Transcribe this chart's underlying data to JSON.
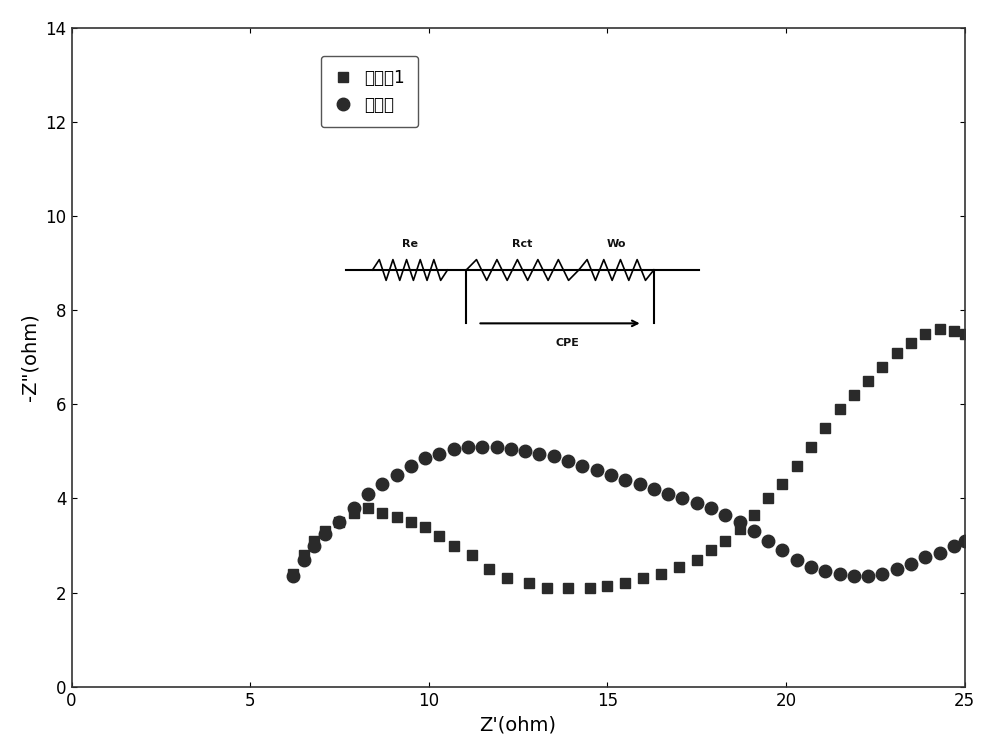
{
  "title": "",
  "xlabel": "Z'(ohm)",
  "ylabel": "-Z\"(ohm)",
  "xlim": [
    0,
    25
  ],
  "ylim": [
    0,
    14
  ],
  "xticks": [
    0,
    5,
    10,
    15,
    20,
    25
  ],
  "yticks": [
    0,
    2,
    4,
    6,
    8,
    10,
    12,
    14
  ],
  "legend_labels": [
    "实施例1",
    "对比例"
  ],
  "series1_x": [
    6.2,
    6.5,
    6.8,
    7.1,
    7.5,
    7.9,
    8.3,
    8.7,
    9.1,
    9.5,
    9.9,
    10.3,
    10.7,
    11.2,
    11.7,
    12.2,
    12.8,
    13.3,
    13.9,
    14.5,
    15.0,
    15.5,
    16.0,
    16.5,
    17.0,
    17.5,
    17.9,
    18.3,
    18.7,
    19.1,
    19.5,
    19.9,
    20.3,
    20.7,
    21.1,
    21.5,
    21.9,
    22.3,
    22.7,
    23.1,
    23.5,
    23.9,
    24.3,
    24.7,
    25.0
  ],
  "series1_y": [
    2.4,
    2.8,
    3.1,
    3.3,
    3.5,
    3.7,
    3.8,
    3.7,
    3.6,
    3.5,
    3.4,
    3.2,
    3.0,
    2.8,
    2.5,
    2.3,
    2.2,
    2.1,
    2.1,
    2.1,
    2.15,
    2.2,
    2.3,
    2.4,
    2.55,
    2.7,
    2.9,
    3.1,
    3.35,
    3.65,
    4.0,
    4.3,
    4.7,
    5.1,
    5.5,
    5.9,
    6.2,
    6.5,
    6.8,
    7.1,
    7.3,
    7.5,
    7.6,
    7.55,
    7.5
  ],
  "series2_x": [
    6.2,
    6.5,
    6.8,
    7.1,
    7.5,
    7.9,
    8.3,
    8.7,
    9.1,
    9.5,
    9.9,
    10.3,
    10.7,
    11.1,
    11.5,
    11.9,
    12.3,
    12.7,
    13.1,
    13.5,
    13.9,
    14.3,
    14.7,
    15.1,
    15.5,
    15.9,
    16.3,
    16.7,
    17.1,
    17.5,
    17.9,
    18.3,
    18.7,
    19.1,
    19.5,
    19.9,
    20.3,
    20.7,
    21.1,
    21.5,
    21.9,
    22.3,
    22.7,
    23.1,
    23.5,
    23.9,
    24.3,
    24.7,
    25.0
  ],
  "series2_y": [
    2.35,
    2.7,
    3.0,
    3.25,
    3.5,
    3.8,
    4.1,
    4.3,
    4.5,
    4.7,
    4.85,
    4.95,
    5.05,
    5.1,
    5.1,
    5.1,
    5.05,
    5.0,
    4.95,
    4.9,
    4.8,
    4.7,
    4.6,
    4.5,
    4.4,
    4.3,
    4.2,
    4.1,
    4.0,
    3.9,
    3.8,
    3.65,
    3.5,
    3.3,
    3.1,
    2.9,
    2.7,
    2.55,
    2.45,
    2.4,
    2.35,
    2.35,
    2.4,
    2.5,
    2.6,
    2.75,
    2.85,
    3.0,
    3.1
  ],
  "marker1": "s",
  "marker2": "o",
  "marker_color": "#2a2a2a",
  "marker_size1": 7,
  "marker_size2": 9,
  "bg_color": "#ffffff",
  "circuit_box_color": "#d8d8e8",
  "circuit_text_color": "#111111",
  "fontsize_axis_label": 14,
  "fontsize_ticks": 12,
  "fontsize_legend": 12
}
